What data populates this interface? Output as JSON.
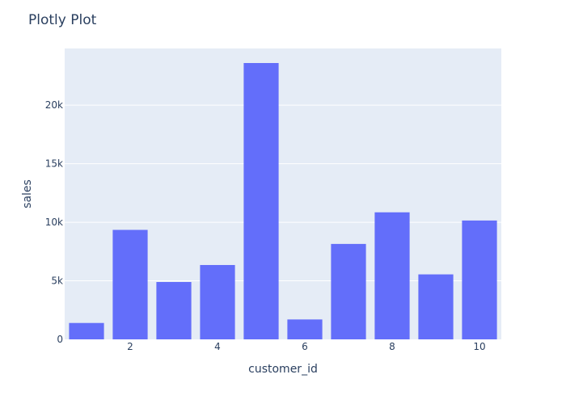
{
  "chart_data": {
    "type": "bar",
    "title": "Plotly Plot",
    "xlabel": "customer_id",
    "ylabel": "sales",
    "x": [
      1,
      2,
      3,
      4,
      5,
      6,
      7,
      8,
      9,
      10
    ],
    "values": [
      1400,
      9350,
      4900,
      6350,
      23600,
      1700,
      8150,
      10850,
      5550,
      10150
    ],
    "xlim": [
      0.5,
      10.5
    ],
    "ylim": [
      0,
      24842
    ],
    "x_ticks": [
      2,
      4,
      6,
      8,
      10
    ],
    "x_tick_labels": [
      "2",
      "4",
      "6",
      "8",
      "10"
    ],
    "y_ticks": [
      0,
      5000,
      10000,
      15000,
      20000
    ],
    "y_tick_labels": [
      "0",
      "5k",
      "10k",
      "15k",
      "20k"
    ],
    "grid": true,
    "colors": {
      "bar": "#636efa",
      "plot_bg": "#e5ecf6",
      "grid": "#ffffff",
      "text": "#2a3f5f"
    }
  }
}
